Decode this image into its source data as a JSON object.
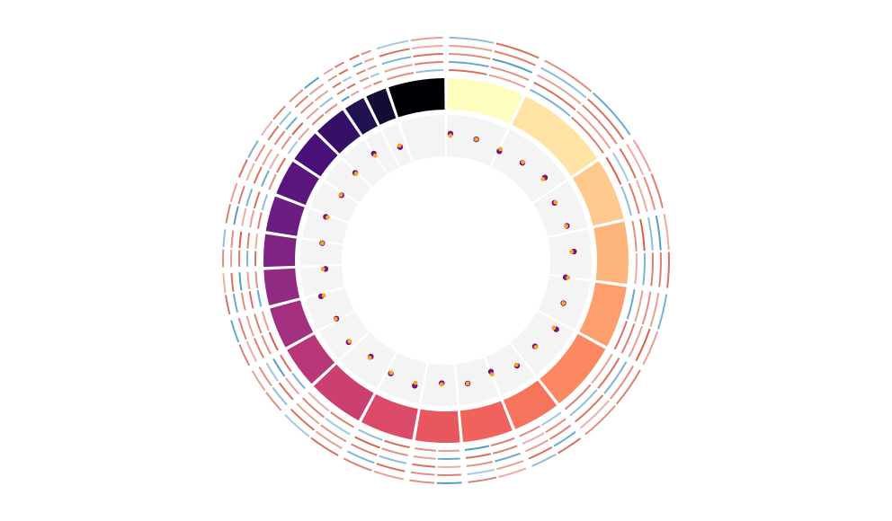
{
  "chart_data": {
    "type": "circos",
    "segments": {
      "values": [
        26,
        32,
        21,
        21,
        21,
        24,
        16,
        17,
        15,
        18,
        19,
        14,
        14,
        12,
        11,
        12,
        12,
        11,
        11,
        7,
        7,
        19
      ],
      "colors": [
        "#fcfdbf",
        "#fee3a5",
        "#fec98d",
        "#feb57c",
        "#fd9f6c",
        "#fb8861",
        "#f6735c",
        "#f0635c",
        "#e8565e",
        "#dc4a69",
        "#cc3f71",
        "#b93778",
        "#a3307e",
        "#912b81",
        "#7f2482",
        "#6c1d81",
        "#5b167e",
        "#481078",
        "#361067",
        "#221150",
        "#120d32",
        "#000004"
      ]
    },
    "heatmap": {
      "colors": [
        "#d6604d",
        "#4393c3"
      ],
      "tracks": [
        [
          0.6,
          0.3,
          -0.4,
          0.5,
          0.7,
          -0.3,
          0.4,
          0.2,
          -0.5,
          0.6,
          0.3,
          0.5,
          -0.2,
          0.4,
          0.5,
          -0.6,
          0.3,
          0.4,
          0.6,
          -0.3,
          0.5,
          0.2,
          -0.4,
          0.6,
          0.7,
          0.3,
          -0.5,
          0.4,
          0.6,
          0.2,
          0.5,
          -0.3,
          0.4,
          0.6,
          -0.2,
          0.3,
          0.5,
          0.4,
          -0.6,
          0.3,
          0.2,
          0.5,
          0.4,
          -0.3
        ],
        [
          -0.5,
          0.4,
          0.6,
          0.3,
          -0.2,
          0.5,
          0.7,
          -0.4,
          0.3,
          0.5,
          0.6,
          -0.3,
          0.4,
          0.2,
          0.5,
          0.6,
          -0.5,
          0.3,
          0.4,
          0.7,
          -0.2,
          0.5,
          0.3,
          -0.6,
          0.4,
          0.5,
          0.6,
          0.3,
          -0.4,
          0.5,
          0.3,
          0.6,
          -0.5,
          0.2,
          0.4,
          0.7,
          0.3,
          -0.3,
          0.5,
          0.6,
          0.4,
          -0.2,
          0.3,
          0.5
        ],
        [
          0.4,
          -0.6,
          0.3,
          0.5,
          0.6,
          0.2,
          -0.3,
          0.5,
          0.4,
          0.3,
          -0.4,
          0.6,
          0.5,
          0.3,
          -0.5,
          0.4,
          0.2,
          0.6,
          -0.3,
          0.5,
          0.4,
          0.3,
          0.6,
          -0.2,
          0.5,
          0.3,
          0.4,
          -0.6,
          0.5,
          0.7,
          0.2,
          -0.4,
          0.6,
          0.3,
          0.5,
          -0.5,
          0.4,
          0.3,
          0.6,
          -0.2,
          0.5,
          0.3,
          -0.4,
          0.6
        ],
        [
          0.3,
          0.5,
          -0.3,
          0.6,
          0.2,
          0.4,
          -0.6,
          0.5,
          0.3,
          0.7,
          0.4,
          0.2,
          -0.5,
          0.6,
          0.3,
          -0.2,
          0.5,
          0.4,
          0.6,
          -0.4,
          0.3,
          0.6,
          -0.3,
          0.4,
          0.2,
          0.5,
          -0.5,
          0.6,
          0.3,
          0.4,
          -0.6,
          0.5,
          0.2,
          0.4,
          0.6,
          -0.3,
          0.5,
          0.3,
          0.4,
          0.6,
          -0.5,
          0.3,
          0.6,
          0.2
        ],
        [
          -0.3,
          0.6,
          0.4,
          -0.5,
          0.3,
          0.5,
          0.2,
          0.6,
          -0.4,
          0.3,
          0.5,
          0.4,
          0.6,
          -0.3,
          0.2,
          0.5,
          -0.6,
          0.4,
          0.3,
          0.5,
          0.6,
          -0.2,
          0.4,
          0.3,
          0.5,
          -0.5,
          0.6,
          0.2,
          0.4,
          -0.3,
          0.5,
          0.3,
          0.6,
          -0.4,
          0.2,
          0.5,
          0.4,
          -0.6,
          0.3,
          0.5,
          0.6,
          0.4,
          -0.2,
          0.3
        ]
      ]
    },
    "scatter": {
      "xlim": [
        0,
        360
      ],
      "ylim": [
        0,
        1
      ],
      "x": [
        2,
        14,
        26,
        38,
        50,
        62,
        74,
        86,
        98,
        110,
        122,
        134,
        146,
        158,
        170,
        182,
        194,
        206,
        218,
        230,
        242,
        254,
        266,
        278,
        290,
        302,
        314,
        326,
        338
      ],
      "series": [
        {
          "color": "#7b0f84",
          "values": [
            0.55,
            0.5,
            0.42,
            0.48,
            0.6,
            0.45,
            0.52,
            0.58,
            0.4,
            0.5,
            0.62,
            0.47,
            0.55,
            0.38,
            0.5,
            0.45,
            0.6,
            0.52,
            0.43,
            0.55,
            0.48,
            0.62,
            0.4,
            0.5,
            0.57,
            0.46,
            0.53,
            0.6,
            0.44
          ]
        },
        {
          "color": "#f5a623",
          "values": [
            0.5,
            0.5,
            0.48,
            0.5,
            0.54,
            0.48,
            0.5,
            0.52,
            0.46,
            0.5,
            0.55,
            0.5,
            0.52,
            0.45,
            0.5,
            0.48,
            0.53,
            0.5,
            0.47,
            0.52,
            0.5,
            0.55,
            0.46,
            0.5,
            0.52,
            0.48,
            0.5,
            0.54,
            0.48
          ]
        }
      ]
    }
  }
}
